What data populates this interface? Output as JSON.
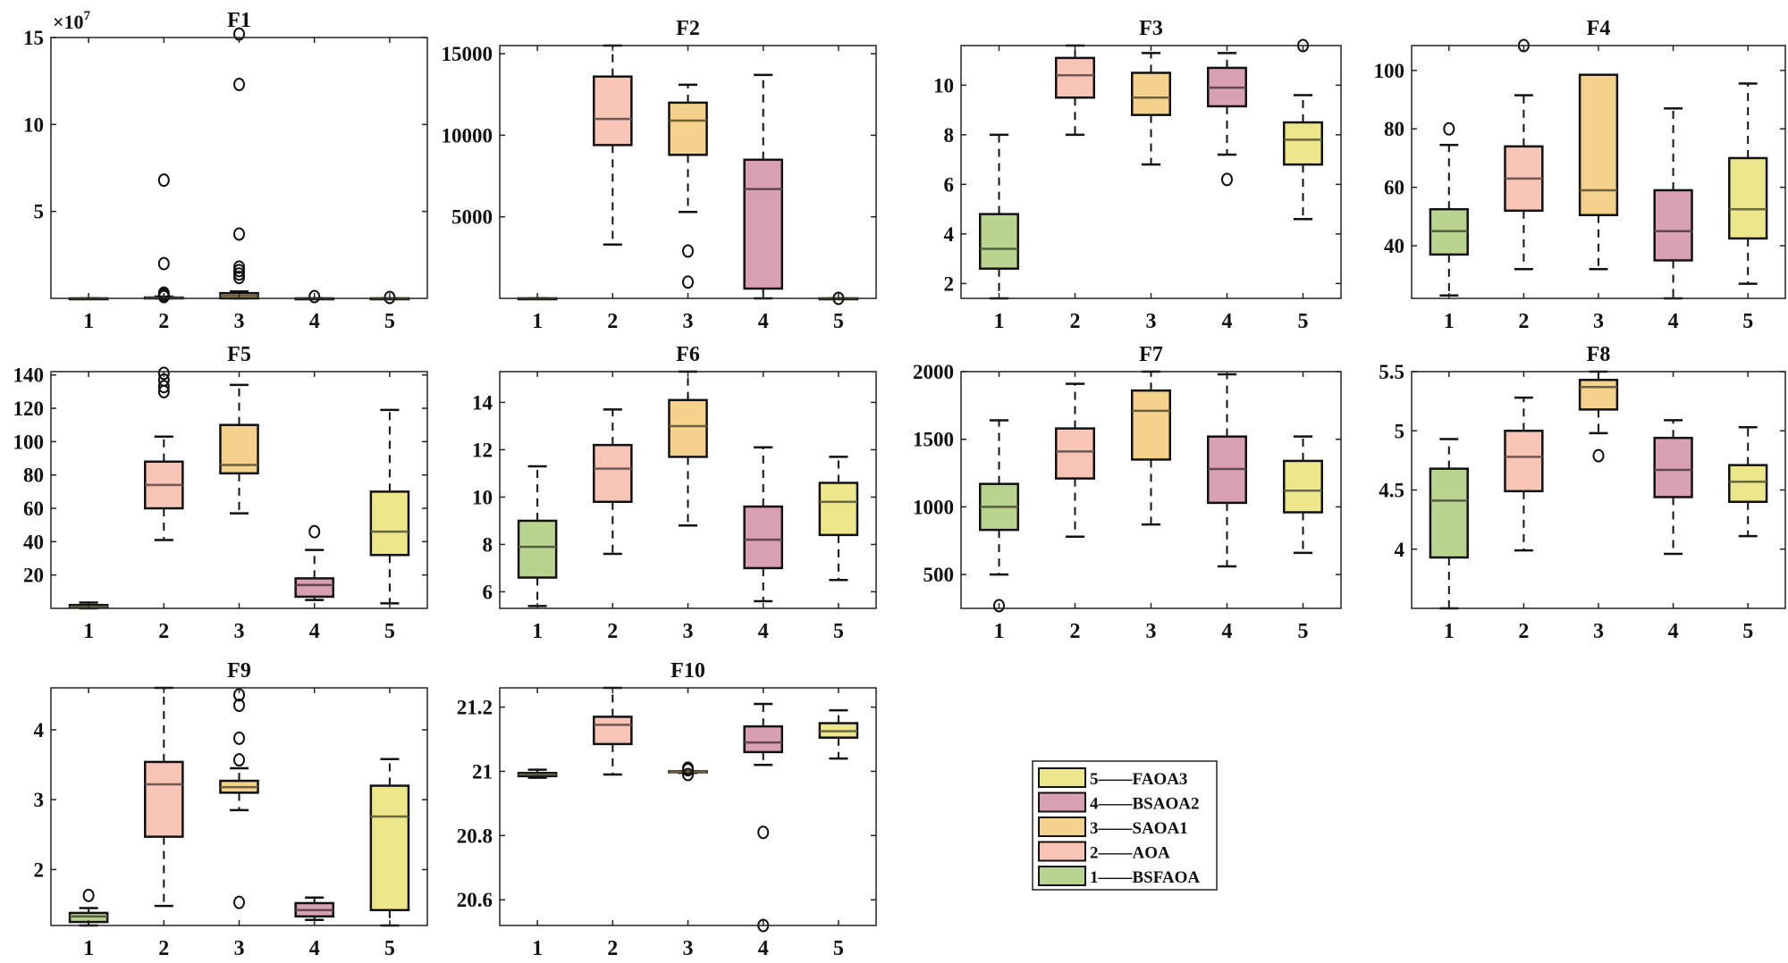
{
  "chart_data": {
    "type": "boxplot",
    "colors": {
      "1": "#b9d48e",
      "2": "#f7c4b6",
      "3": "#f5d28c",
      "4": "#d9a0b4",
      "5": "#ebe78a"
    },
    "categories": [
      "1",
      "2",
      "3",
      "4",
      "5"
    ],
    "legend": {
      "placement": "bottom-right",
      "entries": [
        {
          "key": "5",
          "label": "5——FAOA3"
        },
        {
          "key": "4",
          "label": "4——BSAOA2"
        },
        {
          "key": "3",
          "label": "3——SAOA1"
        },
        {
          "key": "2",
          "label": "2——AOA"
        },
        {
          "key": "1",
          "label": "1——BSFAOA"
        }
      ]
    },
    "panels": [
      {
        "title": "F1",
        "exponent": "×10",
        "exponent_power": "7",
        "ylim": [
          0,
          15
        ],
        "yticks": [
          5,
          10,
          15
        ],
        "groups": [
          {
            "box": [
              0,
              0,
              0,
              0,
              0
            ],
            "outliers": []
          },
          {
            "box": [
              0,
              0,
              0.02,
              0.05,
              0.1
            ],
            "outliers": [
              6.8,
              2.0,
              0.3,
              0.2,
              0.1
            ]
          },
          {
            "box": [
              0,
              0,
              0.15,
              0.3,
              0.4
            ],
            "outliers": [
              15.2,
              12.3,
              3.7,
              1.8,
              1.6,
              1.4,
              1.2
            ]
          },
          {
            "box": [
              0,
              0,
              0,
              0,
              0
            ],
            "outliers": [
              0.1
            ]
          },
          {
            "box": [
              0,
              0,
              0,
              0,
              0
            ],
            "outliers": [
              0.05
            ]
          }
        ]
      },
      {
        "title": "F2",
        "ylim": [
          0,
          15500
        ],
        "yticks": [
          5000,
          10000,
          15000
        ],
        "groups": [
          {
            "box": [
              0,
              0,
              0,
              0,
              0
            ],
            "outliers": []
          },
          {
            "box": [
              3300,
              9400,
              11000,
              13600,
              15500
            ],
            "outliers": []
          },
          {
            "box": [
              5300,
              8800,
              10900,
              12000,
              13100
            ],
            "outliers": [
              2900,
              1000
            ]
          },
          {
            "box": [
              0,
              600,
              6700,
              8500,
              13700
            ],
            "outliers": []
          },
          {
            "box": [
              0,
              0,
              0,
              0,
              0
            ],
            "outliers": [
              0
            ]
          }
        ]
      },
      {
        "title": "F3",
        "ylim": [
          1.4,
          11.6
        ],
        "yticks": [
          2,
          4,
          6,
          8,
          10
        ],
        "groups": [
          {
            "box": [
              1.4,
              2.6,
              3.4,
              4.8,
              8.0
            ],
            "outliers": []
          },
          {
            "box": [
              8.0,
              9.5,
              10.4,
              11.1,
              11.6
            ],
            "outliers": []
          },
          {
            "box": [
              6.8,
              8.8,
              9.5,
              10.5,
              11.3
            ],
            "outliers": []
          },
          {
            "box": [
              7.2,
              9.15,
              9.9,
              10.7,
              11.3
            ],
            "outliers": [
              6.2
            ]
          },
          {
            "box": [
              4.6,
              6.8,
              7.8,
              8.5,
              9.6
            ],
            "outliers": [
              11.6
            ]
          }
        ]
      },
      {
        "title": "F4",
        "ylim": [
          22,
          108.5
        ],
        "yticks": [
          40,
          60,
          80,
          100
        ],
        "groups": [
          {
            "box": [
              23,
              37,
              45,
              52.5,
              74.5
            ],
            "outliers": [
              80
            ]
          },
          {
            "box": [
              32,
              52,
              63,
              74,
              91.5
            ],
            "outliers": [
              108.5
            ]
          },
          {
            "box": [
              32,
              50.5,
              59,
              98.5,
              98.5
            ],
            "outliers": []
          },
          {
            "box": [
              22,
              35,
              45,
              59,
              87
            ],
            "outliers": []
          },
          {
            "box": [
              27,
              42.5,
              52.5,
              70,
              95.5
            ],
            "outliers": []
          }
        ]
      },
      {
        "title": "F5",
        "ylim": [
          0,
          142
        ],
        "yticks": [
          20,
          40,
          60,
          80,
          100,
          120,
          140
        ],
        "groups": [
          {
            "box": [
              0,
              0.5,
              1,
              2,
              3.5
            ],
            "outliers": []
          },
          {
            "box": [
              41,
              60,
              74,
              88,
              103
            ],
            "outliers": [
              130,
              133,
              137,
              141
            ]
          },
          {
            "box": [
              57,
              81,
              86,
              110,
              134
            ],
            "outliers": []
          },
          {
            "box": [
              5,
              7,
              14,
              18,
              35
            ],
            "outliers": [
              46
            ]
          },
          {
            "box": [
              3,
              32,
              46,
              70,
              119
            ],
            "outliers": []
          }
        ]
      },
      {
        "title": "F6",
        "ylim": [
          5.3,
          15.3
        ],
        "yticks": [
          6,
          8,
          10,
          12,
          14
        ],
        "groups": [
          {
            "box": [
              5.4,
              6.6,
              7.9,
              9.0,
              11.3
            ],
            "outliers": []
          },
          {
            "box": [
              7.6,
              9.8,
              11.2,
              12.2,
              13.7
            ],
            "outliers": []
          },
          {
            "box": [
              8.8,
              11.7,
              13.0,
              14.1,
              15.3
            ],
            "outliers": []
          },
          {
            "box": [
              5.6,
              7.0,
              8.2,
              9.6,
              12.1
            ],
            "outliers": []
          },
          {
            "box": [
              6.5,
              8.4,
              9.8,
              10.6,
              11.7
            ],
            "outliers": []
          }
        ]
      },
      {
        "title": "F7",
        "ylim": [
          250,
          2000
        ],
        "yticks": [
          500,
          1000,
          1500,
          2000
        ],
        "groups": [
          {
            "box": [
              500,
              830,
              1000,
              1170,
              1640
            ],
            "outliers": [
              270
            ]
          },
          {
            "box": [
              780,
              1210,
              1410,
              1580,
              1910
            ],
            "outliers": []
          },
          {
            "box": [
              870,
              1350,
              1710,
              1860,
              2000
            ],
            "outliers": []
          },
          {
            "box": [
              560,
              1030,
              1280,
              1520,
              1980
            ],
            "outliers": []
          },
          {
            "box": [
              660,
              960,
              1120,
              1340,
              1520
            ],
            "outliers": []
          }
        ]
      },
      {
        "title": "F8",
        "ylim": [
          3.5,
          5.5
        ],
        "yticks": [
          4,
          4.5,
          5,
          5.5
        ],
        "groups": [
          {
            "box": [
              3.5,
              3.93,
              4.41,
              4.68,
              4.93
            ],
            "outliers": []
          },
          {
            "box": [
              3.99,
              4.49,
              4.78,
              5.0,
              5.28
            ],
            "outliers": []
          },
          {
            "box": [
              4.98,
              5.18,
              5.37,
              5.43,
              5.5
            ],
            "outliers": [
              4.79
            ]
          },
          {
            "box": [
              3.96,
              4.44,
              4.67,
              4.94,
              5.09
            ],
            "outliers": []
          },
          {
            "box": [
              4.11,
              4.4,
              4.57,
              4.71,
              5.03
            ],
            "outliers": []
          }
        ]
      },
      {
        "title": "F9",
        "ylim": [
          1.2,
          4.6
        ],
        "yticks": [
          2,
          3,
          4
        ],
        "groups": [
          {
            "box": [
              1.2,
              1.25,
              1.33,
              1.38,
              1.45
            ],
            "outliers": [
              1.63
            ]
          },
          {
            "box": [
              1.48,
              2.47,
              3.22,
              3.54,
              4.6
            ],
            "outliers": []
          },
          {
            "box": [
              2.85,
              3.1,
              3.18,
              3.27,
              3.45
            ],
            "outliers": [
              4.5,
              4.35,
              3.88,
              3.57,
              1.53
            ]
          },
          {
            "box": [
              1.28,
              1.33,
              1.42,
              1.52,
              1.6
            ],
            "outliers": []
          },
          {
            "box": [
              1.2,
              1.42,
              2.76,
              3.2,
              3.58
            ],
            "outliers": []
          }
        ]
      },
      {
        "title": "F10",
        "ylim": [
          20.52,
          21.26
        ],
        "yticks": [
          20.6,
          20.8,
          21,
          21.2
        ],
        "groups": [
          {
            "box": [
              20.98,
              20.985,
              20.99,
              20.995,
              21.005
            ],
            "outliers": []
          },
          {
            "box": [
              20.99,
              21.085,
              21.145,
              21.17,
              21.26
            ],
            "outliers": []
          },
          {
            "box": [
              20.995,
              20.997,
              20.998,
              21.0,
              21.0
            ],
            "outliers": [
              20.99,
              21.005,
              21.01
            ]
          },
          {
            "box": [
              21.02,
              21.06,
              21.09,
              21.14,
              21.21
            ],
            "outliers": [
              20.81,
              20.52
            ]
          },
          {
            "box": [
              21.04,
              21.105,
              21.125,
              21.15,
              21.19
            ],
            "outliers": []
          }
        ]
      }
    ]
  }
}
